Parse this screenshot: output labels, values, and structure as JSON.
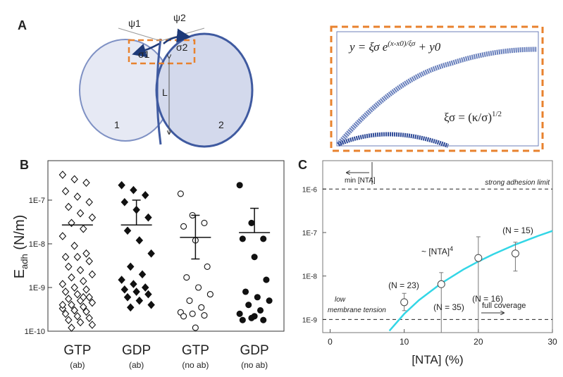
{
  "panel_a": {
    "letter": "A",
    "psi1": "ψ1",
    "psi2": "ψ2",
    "sigma1": "σ1",
    "sigma2": "σ2",
    "length": "L",
    "cell1": "1",
    "cell2": "2",
    "equation1": {
      "base": "y = ξσ e",
      "exponent": "(x-x0)/ξσ",
      "tail": " + y0"
    },
    "equation2": {
      "base": "ξσ = (κ/σ)",
      "exponent": "1/2"
    }
  },
  "chart_data": [
    {
      "type": "strip",
      "letter": "B",
      "ylabel": "E",
      "ylabel_sub": "adh",
      "ylabel_unit": " (N/m)",
      "log_y": true,
      "ylim": [
        1e-10,
        8e-07
      ],
      "yticks": [
        {
          "value": 1e-10,
          "label": "1E-10"
        },
        {
          "value": 1e-09,
          "label": "1E-9"
        },
        {
          "value": 1e-08,
          "label": "1E-8"
        },
        {
          "value": 1e-07,
          "label": "1E-7"
        }
      ],
      "categories": [
        "GTP",
        "GDP",
        "GTP",
        "GDP"
      ],
      "subcategories": [
        "(ab)",
        "(ab)",
        "(no ab)",
        "(no ab)"
      ],
      "groups": [
        {
          "marker": "diamond",
          "filled": false,
          "mean": 2.7e-08,
          "values": [
            3.8e-07,
            3e-07,
            2.5e-07,
            1.6e-07,
            1.2e-07,
            9e-08,
            7e-08,
            5e-08,
            4e-08,
            3e-08,
            2.2e-08,
            1.5e-08,
            9e-09,
            6e-09,
            5e-09,
            5e-09,
            4e-09,
            3e-09,
            2.5e-09,
            2e-09,
            1.7e-09,
            1.4e-09,
            1.2e-09,
            1e-09,
            9e-10,
            8e-10,
            7e-10,
            6e-10,
            5.5e-10,
            5e-10,
            4.5e-10,
            4e-10,
            3.6e-10,
            3.3e-10,
            3e-10,
            2.8e-10,
            2.5e-10,
            2.2e-10,
            2e-10,
            1.8e-10,
            1.6e-10,
            1.4e-10,
            1.2e-10,
            6e-10,
            4e-10,
            3e-10
          ]
        },
        {
          "marker": "diamond",
          "filled": true,
          "mean": 2.7e-08,
          "error_high": 1e-07,
          "values": [
            2.2e-07,
            1.7e-07,
            1.3e-07,
            9e-08,
            6e-08,
            4e-08,
            2e-08,
            1.2e-08,
            6e-09,
            3e-09,
            2e-09,
            1.5e-09,
            1.2e-09,
            1e-09,
            9e-10,
            8e-10,
            7e-10,
            6e-10,
            5e-10,
            4e-10,
            3.5e-10
          ]
        },
        {
          "marker": "circle",
          "filled": false,
          "mean": 1.4e-08,
          "error_low": 4.5e-09,
          "error_high": 4.5e-08,
          "values": [
            1.4e-07,
            4.5e-08,
            3e-08,
            2.5e-08,
            1.2e-08,
            3e-09,
            1.7e-09,
            1e-09,
            7e-10,
            5e-10,
            3.5e-10,
            2.7e-10,
            2.5e-10,
            2.3e-10,
            2.2e-10,
            1.2e-10
          ]
        },
        {
          "marker": "circle",
          "filled": true,
          "mean": 1.8e-08,
          "error_high": 6.5e-08,
          "values": [
            2.2e-07,
            3e-08,
            1.3e-08,
            1.3e-08,
            5e-09,
            1.5e-09,
            8e-10,
            6e-10,
            5e-10,
            4e-10,
            3e-10,
            2.5e-10,
            2e-10,
            1.8e-10,
            1.8e-10,
            2.2e-10
          ]
        }
      ]
    },
    {
      "type": "scatter",
      "letter": "C",
      "xlabel": "[NTA] (%)",
      "log_y": true,
      "xlim": [
        -1,
        30
      ],
      "xticks": [
        0,
        10,
        20,
        30
      ],
      "ylim": [
        5e-10,
        4.5e-06
      ],
      "yticks": [
        {
          "value": 1e-09,
          "label": "1E-9"
        },
        {
          "value": 1e-08,
          "label": "1E-8"
        },
        {
          "value": 1e-07,
          "label": "1E-7"
        },
        {
          "value": 1e-06,
          "label": "1E-6"
        }
      ],
      "x": [
        10,
        15,
        20,
        25
      ],
      "values": [
        2.5e-09,
        6.5e-09,
        2.6e-08,
        3.3e-08
      ],
      "error_low": [
        1.6e-09,
        5e-10,
        5e-10,
        1.3e-08
      ],
      "error_high": [
        4e-09,
        1.2e-08,
        8e-08,
        6e-08
      ],
      "point_labels": [
        "(N = 23)",
        "(N = 35)",
        "(N = 16)",
        "(N = 15)"
      ],
      "fit": {
        "color": "#33d6e6",
        "x": [
          8,
          10,
          12,
          15,
          18,
          20,
          22,
          25,
          28,
          30
        ],
        "values": [
          5.5e-10,
          1.35e-09,
          2.8e-09,
          6.8e-09,
          1.42e-08,
          2.16e-08,
          3.16e-08,
          5.3e-08,
          8.3e-08,
          1.09e-07
        ]
      },
      "fit_label": "~ [NTA]",
      "fit_label_exp": "4",
      "hlines": [
        1e-06,
        1e-09
      ],
      "annotations": {
        "min": "min [NTA]",
        "strong": "strong adhesion limit",
        "low1": "low",
        "low2": "membrane tension",
        "full": "full coverage"
      }
    }
  ]
}
